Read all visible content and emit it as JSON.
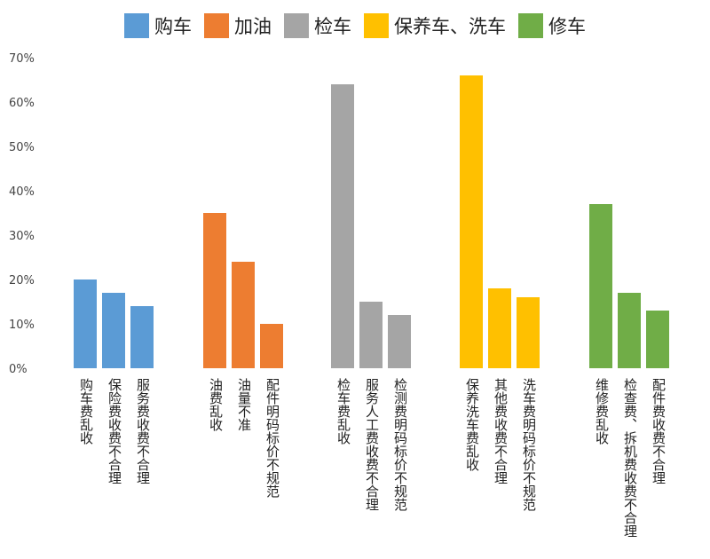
{
  "chart_data": {
    "type": "bar",
    "title": "",
    "xlabel": "",
    "ylabel": "",
    "ylim": [
      0,
      70
    ],
    "yticks": [
      "0%",
      "10%",
      "20%",
      "30%",
      "40%",
      "50%",
      "60%",
      "70%"
    ],
    "grid": false,
    "legend_position": "top",
    "groups": [
      {
        "name": "购车",
        "color": "#5B9BD5",
        "categories": [
          "购车费乱收",
          "保险费收费不合理",
          "服务费收费不合理"
        ],
        "values": [
          20,
          17,
          14
        ]
      },
      {
        "name": "加油",
        "color": "#ED7D31",
        "categories": [
          "油费乱收",
          "油量不准",
          "配件明码标价不规范"
        ],
        "values": [
          35,
          24,
          10
        ]
      },
      {
        "name": "检车",
        "color": "#A5A5A5",
        "categories": [
          "检车费乱收",
          "服务人工费收费不合理",
          "检测费明码标价不规范"
        ],
        "values": [
          64,
          15,
          12
        ]
      },
      {
        "name": "保养车、洗车",
        "color": "#FFC000",
        "categories": [
          "保养洗车费乱收",
          "其他费收费不合理",
          "洗车费明码标价不规范"
        ],
        "values": [
          66,
          18,
          16
        ]
      },
      {
        "name": "修车",
        "color": "#70AD47",
        "categories": [
          "维修费乱收",
          "检查费、拆机费收费不合理",
          "配件费收费不合理"
        ],
        "values": [
          37,
          17,
          13
        ]
      }
    ]
  }
}
